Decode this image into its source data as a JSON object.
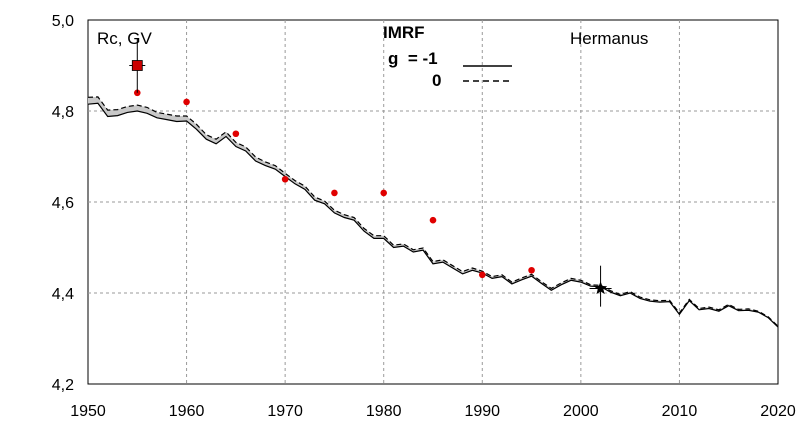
{
  "chart_data": {
    "type": "line",
    "ylabel": "Rc, GV",
    "station": "Hermanus",
    "legend": {
      "title": "IMRF",
      "entries": [
        {
          "label": "g  = -1",
          "style": "solid"
        },
        {
          "label": "0",
          "style": "dashed"
        }
      ]
    },
    "xlim": [
      1950,
      2020
    ],
    "ylim": [
      4.2,
      5.0
    ],
    "x_ticks": [
      1950,
      1960,
      1970,
      1980,
      1990,
      2000,
      2010,
      2020
    ],
    "x_tick_labels": [
      "1950",
      "1960",
      "1970",
      "1980",
      "1990",
      "2000",
      "2010",
      "2020"
    ],
    "y_ticks": [
      4.2,
      4.4,
      4.6,
      4.8,
      5.0
    ],
    "y_tick_labels": [
      "4,2",
      "4,4",
      "4,6",
      "4,8",
      "5,0"
    ],
    "grid": true,
    "colors": {
      "points": "#e00000",
      "band": "#c8c8c8",
      "line": "#000000"
    },
    "series": [
      {
        "name": "g  = -1",
        "style": "solid",
        "x": [
          1950,
          1951,
          1952,
          1953,
          1954,
          1955,
          1956,
          1957,
          1958,
          1959,
          1960,
          1961,
          1962,
          1963,
          1964,
          1965,
          1966,
          1967,
          1968,
          1969,
          1970,
          1971,
          1972,
          1973,
          1974,
          1975,
          1976,
          1977,
          1978,
          1979,
          1980,
          1981,
          1982,
          1983,
          1984,
          1985,
          1986,
          1987,
          1988,
          1989,
          1990,
          1991,
          1992,
          1993,
          1994,
          1995,
          1996,
          1997,
          1998,
          1999,
          2000,
          2001,
          2002,
          2003,
          2004,
          2005,
          2006,
          2007,
          2008,
          2009,
          2010,
          2011,
          2012,
          2013,
          2014,
          2015,
          2016,
          2017,
          2018,
          2019,
          2020
        ],
        "y": [
          4.815,
          4.817,
          4.788,
          4.79,
          4.797,
          4.8,
          4.795,
          4.785,
          4.781,
          4.777,
          4.778,
          4.76,
          4.738,
          4.728,
          4.744,
          4.722,
          4.712,
          4.69,
          4.68,
          4.672,
          4.656,
          4.64,
          4.628,
          4.604,
          4.596,
          4.576,
          4.566,
          4.56,
          4.536,
          4.52,
          4.52,
          4.5,
          4.503,
          4.49,
          4.494,
          4.464,
          4.468,
          4.455,
          4.442,
          4.45,
          4.444,
          4.432,
          4.436,
          4.42,
          4.429,
          4.437,
          4.421,
          4.406,
          4.418,
          4.428,
          4.424,
          4.415,
          4.414,
          4.402,
          4.394,
          4.4,
          4.388,
          4.382,
          4.38,
          4.381,
          4.353,
          4.383,
          4.363,
          4.366,
          4.36,
          4.372,
          4.361,
          4.362,
          4.358,
          4.346,
          4.325
        ]
      },
      {
        "name": "0",
        "style": "dashed",
        "x": [
          1950,
          1951,
          1952,
          1953,
          1954,
          1955,
          1956,
          1957,
          1958,
          1959,
          1960,
          1961,
          1962,
          1963,
          1964,
          1965,
          1966,
          1967,
          1968,
          1969,
          1970,
          1971,
          1972,
          1973,
          1974,
          1975,
          1976,
          1977,
          1978,
          1979,
          1980,
          1981,
          1982,
          1983,
          1984,
          1985,
          1986,
          1987,
          1988,
          1989,
          1990,
          1991,
          1992,
          1993,
          1994,
          1995,
          1996,
          1997,
          1998,
          1999,
          2000,
          2001,
          2002,
          2003,
          2004,
          2005,
          2006,
          2007,
          2008,
          2009,
          2010,
          2011,
          2012,
          2013,
          2014,
          2015,
          2016,
          2017,
          2018,
          2019,
          2020
        ],
        "y": [
          4.83,
          4.831,
          4.802,
          4.803,
          4.81,
          4.813,
          4.808,
          4.797,
          4.793,
          4.789,
          4.789,
          4.771,
          4.748,
          4.738,
          4.754,
          4.731,
          4.721,
          4.699,
          4.688,
          4.68,
          4.663,
          4.647,
          4.635,
          4.611,
          4.602,
          4.582,
          4.572,
          4.566,
          4.542,
          4.526,
          4.526,
          4.505,
          4.508,
          4.495,
          4.499,
          4.469,
          4.473,
          4.46,
          4.447,
          4.455,
          4.448,
          4.436,
          4.44,
          4.424,
          4.433,
          4.441,
          4.425,
          4.41,
          4.422,
          4.432,
          4.428,
          4.418,
          4.417,
          4.405,
          4.397,
          4.403,
          4.391,
          4.385,
          4.383,
          4.384,
          4.356,
          4.386,
          4.366,
          4.369,
          4.363,
          4.375,
          4.364,
          4.365,
          4.36,
          4.348,
          4.327
        ]
      }
    ],
    "points": {
      "x": [
        1955,
        1960,
        1965,
        1970,
        1975,
        1980,
        1985,
        1990,
        1995
      ],
      "y": [
        4.84,
        4.82,
        4.75,
        4.65,
        4.62,
        4.62,
        4.56,
        4.44,
        4.45
      ]
    },
    "markers": [
      {
        "shape": "square",
        "color": "#cc0000",
        "x": 1955,
        "y": 4.9,
        "err_low": 4.84,
        "err_high": 4.96
      },
      {
        "shape": "star",
        "color": "#000000",
        "x": 2002,
        "y": 4.41,
        "err_low": 4.37,
        "err_high": 4.46
      }
    ]
  }
}
